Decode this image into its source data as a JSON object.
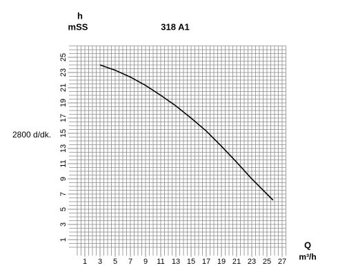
{
  "chart_data": {
    "type": "line",
    "title": "318 A1",
    "speed_label": "2800 d/dk.",
    "ylabel": "h",
    "yunit": "mSS",
    "xlabel": "Q",
    "xunit": "m³/h",
    "x": [
      3,
      5,
      7,
      9,
      11,
      13,
      15,
      17,
      19,
      21,
      23,
      25,
      25.8
    ],
    "series": [
      {
        "color": "#000000",
        "values": [
          24,
          23.3,
          22.4,
          21.3,
          20,
          18.6,
          17,
          15.3,
          13.3,
          11.2,
          9,
          7,
          6.2
        ]
      }
    ],
    "xlim": [
      0,
      27.5
    ],
    "ylim": [
      0,
      26.5
    ],
    "xticks": [
      1,
      3,
      5,
      7,
      9,
      11,
      13,
      15,
      17,
      19,
      21,
      23,
      25,
      27
    ],
    "yticks": [
      1,
      3,
      5,
      7,
      9,
      11,
      13,
      15,
      17,
      19,
      21,
      23,
      25
    ],
    "grid": true
  }
}
